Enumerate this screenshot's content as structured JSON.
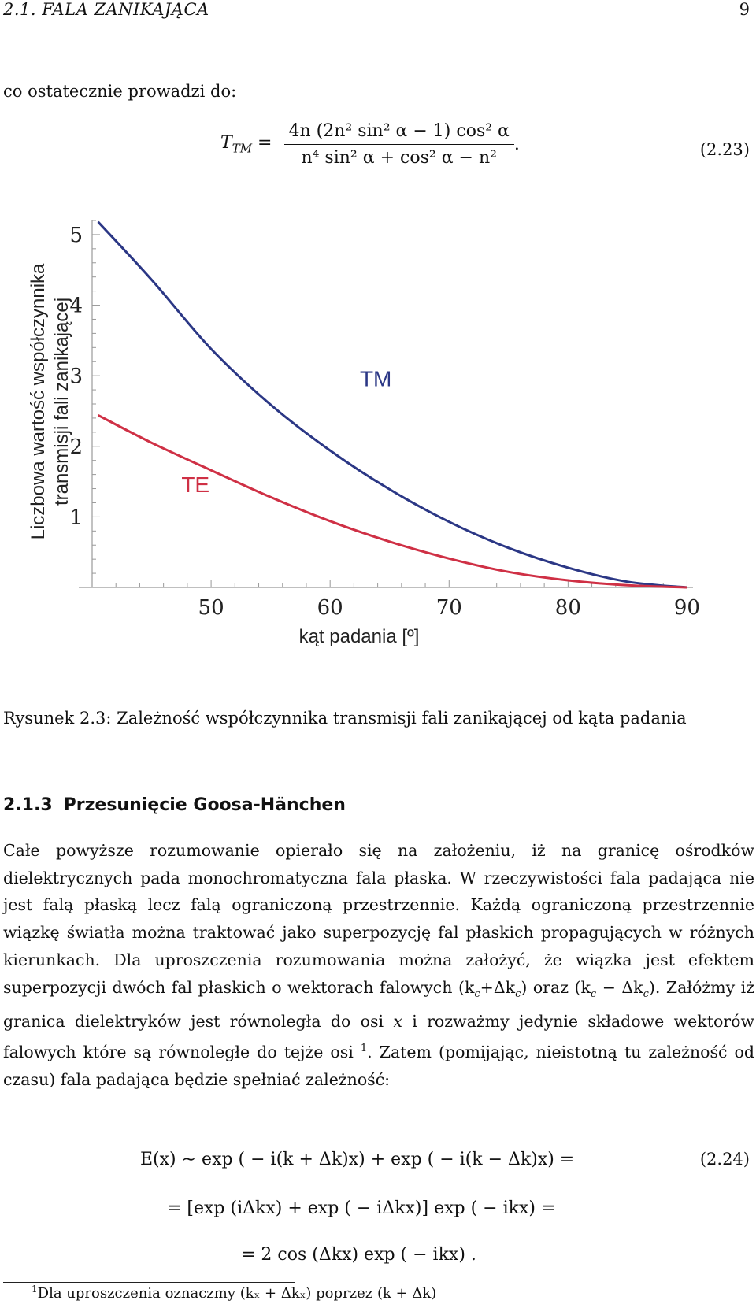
{
  "header": {
    "section": "2.1.  FALA ZANIKAJĄCA",
    "page": "9"
  },
  "intro": "co ostatecznie prowadzi do:",
  "equation_2_23": {
    "lhs_symbol": "T",
    "lhs_sub": "TM",
    "numerator": "4n (2n² sin² α − 1) cos² α",
    "denominator": "n⁴ sin² α + cos² α − n²",
    "number": "(2.23)"
  },
  "chart_data": {
    "type": "line",
    "title": "",
    "xlabel": "kąt padania [º]",
    "ylabel": [
      "Liczbowa wartość współczynnika",
      "transmisji fali zanikającej"
    ],
    "xlim": [
      40,
      90.5
    ],
    "ylim": [
      0,
      5.2
    ],
    "x_ticks": [
      50,
      60,
      70,
      80,
      90
    ],
    "y_ticks": [
      1,
      2,
      3,
      4,
      5
    ],
    "grid": false,
    "legend": "inline labels",
    "series": [
      {
        "name": "TM",
        "color": "#2b3785",
        "x": [
          40.5,
          45,
          50,
          55,
          60,
          65,
          70,
          75,
          80,
          85,
          90
        ],
        "y": [
          5.18,
          4.36,
          3.38,
          2.59,
          1.94,
          1.39,
          0.93,
          0.56,
          0.28,
          0.08,
          0.0
        ]
      },
      {
        "name": "TE",
        "color": "#cf3045",
        "x": [
          40.5,
          45,
          50,
          55,
          60,
          65,
          70,
          75,
          80,
          85,
          90
        ],
        "y": [
          2.44,
          2.05,
          1.66,
          1.28,
          0.94,
          0.65,
          0.41,
          0.22,
          0.1,
          0.03,
          0.0
        ]
      }
    ]
  },
  "caption": "Rysunek 2.3: Zależność współczynnika transmisji fali zanikającej od kąta padania",
  "section": {
    "number": "2.1.3",
    "title": "Przesunięcie Goosa-Hänchen"
  },
  "body": {
    "s1": "Całe powyższe rozumowanie opierało się na założeniu, iż na granicę ośrodków dielektrycznych pada monochromatyczna fala płaska. W rzeczywistości fala padająca nie jest falą płaską lecz falą ograniczoną przestrzennie. Każdą ograniczoną przestrzennie wiązkę światła można traktować jako superpozycję fal płaskich propagujących w różnych kierunkach. Dla uproszczenia rozumowania można założyć, że wiązka jest efektem superpozycji dwóch fal płaskich o wektorach falowych ",
    "k1": "(k",
    "k1sub": "c",
    "k1b": "+Δk",
    "k1bsub": "c",
    "k1c": ")",
    "oraz": " oraz ",
    "k2": "(k",
    "k2sub": "c",
    "k2b": " − Δk",
    "k2bsub": "c",
    "k2c": ")",
    "s2": ". Załóżmy iż granica dielektryków jest równoległa do osi ",
    "x": "x",
    "s3": " i rozważmy jedynie składowe wektorów falowych które są równoległe do tejże osi ",
    "fnmark": "1",
    "s4": ". Zatem (pomijając, nieistotną tu zależność od czasu) fala padająca będzie spełniać zależność:"
  },
  "equation_2_24": {
    "line1": "E(x) ∼ exp ( − i(k + Δk)x) + exp ( − i(k − Δk)x) =",
    "line2": "= [exp (iΔkx) + exp ( − iΔkx)] exp ( − ikx) =",
    "line3": "= 2 cos (Δkx) exp ( − ikx) .",
    "number": "(2.24)"
  },
  "footnote": {
    "mark": "1",
    "text": "Dla uproszczenia oznaczmy (kₓ + Δkₓ) poprzez (k + Δk)"
  }
}
